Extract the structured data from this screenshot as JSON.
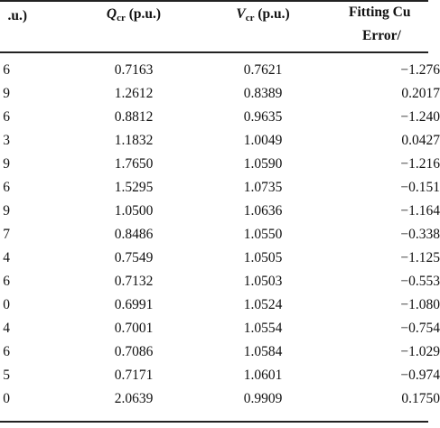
{
  "table": {
    "headers": [
      {
        "text": ".u.)"
      },
      {
        "main": "Q",
        "sub": "cr",
        "unit": " (p.u.)"
      },
      {
        "main": "V",
        "sub": "cr",
        "unit": " (p.u.)"
      },
      {
        "line1": "Fitting Cu",
        "line2": "Error/"
      }
    ],
    "rows": [
      [
        "6",
        "0.7163",
        "0.7621",
        "−1.276"
      ],
      [
        "9",
        "1.2612",
        "0.8389",
        "0.2017"
      ],
      [
        "6",
        "0.8812",
        "0.9635",
        "−1.240"
      ],
      [
        "3",
        "1.1832",
        "1.0049",
        "0.0427"
      ],
      [
        "9",
        "1.7650",
        "1.0590",
        "−1.216"
      ],
      [
        "6",
        "1.5295",
        "1.0735",
        "−0.151"
      ],
      [
        "9",
        "1.0500",
        "1.0636",
        "−1.164"
      ],
      [
        "7",
        "0.8486",
        "1.0550",
        "−0.338"
      ],
      [
        "4",
        "0.7549",
        "1.0505",
        "−1.125"
      ],
      [
        "6",
        "0.7132",
        "1.0503",
        "−0.553"
      ],
      [
        "0",
        "0.6991",
        "1.0524",
        "−1.080"
      ],
      [
        "4",
        "0.7001",
        "1.0554",
        "−0.754"
      ],
      [
        "6",
        "0.7086",
        "1.0584",
        "−1.029"
      ],
      [
        "5",
        "0.7171",
        "1.0601",
        "−0.974"
      ],
      [
        "0",
        "2.0639",
        "0.9909",
        "0.1750"
      ]
    ]
  }
}
